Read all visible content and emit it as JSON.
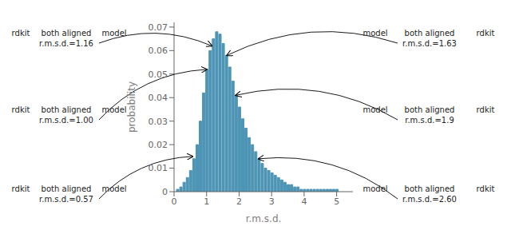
{
  "chart_data": {
    "type": "bar",
    "xlabel": "r.m.s.d.",
    "ylabel": "probability",
    "x": [
      0.1,
      0.2,
      0.3,
      0.4,
      0.5,
      0.6,
      0.7,
      0.8,
      0.9,
      1.0,
      1.1,
      1.2,
      1.3,
      1.4,
      1.5,
      1.6,
      1.7,
      1.8,
      1.9,
      2.0,
      2.1,
      2.2,
      2.3,
      2.4,
      2.5,
      2.6,
      2.7,
      2.8,
      2.9,
      3.0,
      3.1,
      3.2,
      3.3,
      3.4,
      3.5,
      3.6,
      3.7,
      3.8,
      3.9,
      4.0,
      4.1,
      4.2,
      4.3,
      4.4,
      4.5,
      4.6,
      4.7,
      4.8,
      4.9,
      5.0
    ],
    "values": [
      0.001,
      0.002,
      0.004,
      0.006,
      0.009,
      0.014,
      0.02,
      0.03,
      0.042,
      0.052,
      0.06,
      0.065,
      0.068,
      0.067,
      0.063,
      0.058,
      0.053,
      0.047,
      0.041,
      0.036,
      0.031,
      0.027,
      0.023,
      0.02,
      0.017,
      0.014,
      0.012,
      0.01,
      0.009,
      0.008,
      0.007,
      0.006,
      0.005,
      0.004,
      0.003,
      0.003,
      0.002,
      0.002,
      0.001,
      0.001,
      0.001,
      0.001,
      0.001,
      0.001,
      0.001,
      0.001,
      0.001,
      0.001,
      0.001,
      0.001
    ],
    "color": "#4d94b5",
    "xlim": [
      0,
      5.5
    ],
    "ylim": [
      0,
      0.072
    ],
    "xticks": [
      0,
      1,
      2,
      3,
      4,
      5
    ],
    "yticks": [
      0,
      0.01,
      0.02,
      0.03,
      0.04,
      0.05,
      0.06,
      0.07
    ],
    "annotations": [
      {
        "texts": [
          "rdkit",
          "both aligned",
          "r.m.s.d.=1.16",
          "model"
        ],
        "x": 1.16,
        "y": 0.062
      },
      {
        "texts": [
          "rdkit",
          "both aligned",
          "r.m.s.d.=1.00",
          "model"
        ],
        "x": 1.0,
        "y": 0.052
      },
      {
        "texts": [
          "rdkit",
          "both aligned",
          "r.m.s.d.=0.57",
          "model"
        ],
        "x": 0.57,
        "y": 0.015
      },
      {
        "texts": [
          "model",
          "both aligned",
          "r.m.s.d.=1.63",
          "rdkit"
        ],
        "x": 1.63,
        "y": 0.058
      },
      {
        "texts": [
          "model",
          "both aligned",
          "r.m.s.d.=1.9",
          "rdkit"
        ],
        "x": 1.9,
        "y": 0.041
      },
      {
        "texts": [
          "model",
          "both aligned",
          "r.m.s.d.=2.60",
          "rdkit"
        ],
        "x": 2.6,
        "y": 0.014
      }
    ]
  }
}
